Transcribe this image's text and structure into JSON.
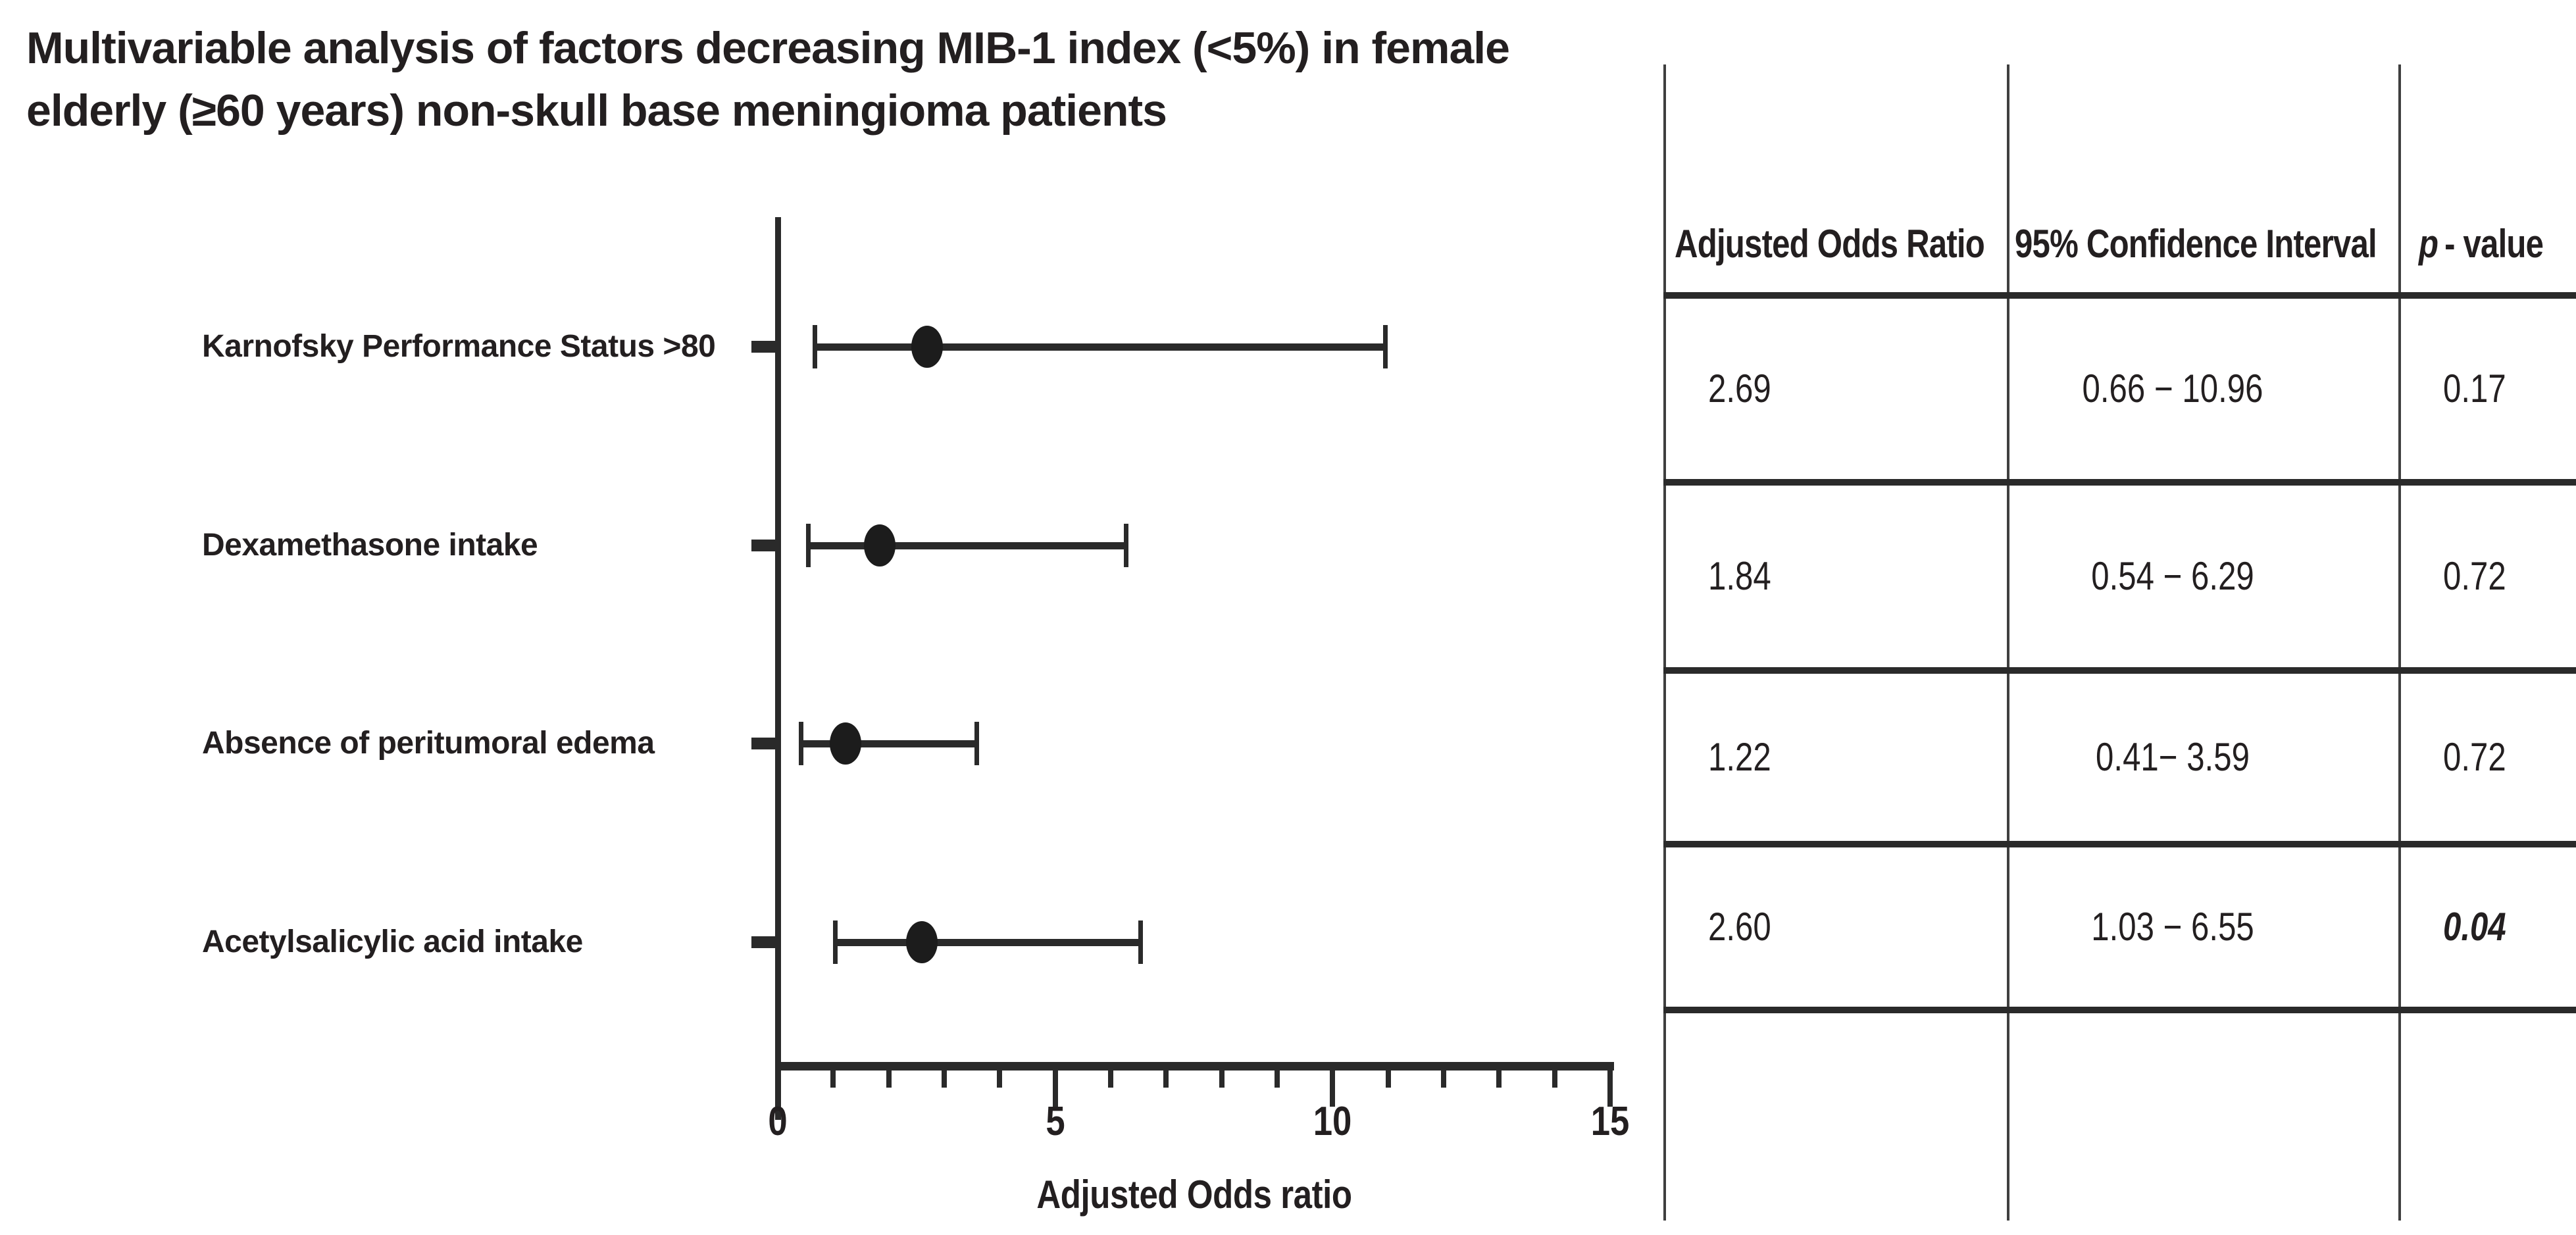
{
  "title_lines": {
    "line1": "Multivariable analysis of factors decreasing MIB-1 index (<5%) in female",
    "line2": "elderly (≥60 years) non-skull base meningioma patients"
  },
  "chart_data": {
    "type": "scatter",
    "subtype": "forest-plot-with-error-bars",
    "title": "Multivariable analysis of factors decreasing MIB-1 index (<5%) in female elderly (≥60 years) non-skull base meningioma patients",
    "categories": [
      "Karnofsky Performance Status >80",
      "Dexamethasone intake",
      "Absence of peritumoral edema",
      "Acetylsalicylic acid intake"
    ],
    "rows": [
      {
        "label": "Karnofsky Performance Status >80",
        "odds_ratio": 2.69,
        "ci_low": 0.66,
        "ci_high": 10.96,
        "p_value": 0.17
      },
      {
        "label": "Dexamethasone intake",
        "odds_ratio": 1.84,
        "ci_low": 0.54,
        "ci_high": 6.29,
        "p_value": 0.72
      },
      {
        "label": "Absence of peritumoral edema",
        "odds_ratio": 1.22,
        "ci_low": 0.41,
        "ci_high": 3.59,
        "p_value": 0.72
      },
      {
        "label": "Acetylsalicylic acid intake",
        "odds_ratio": 2.6,
        "ci_low": 1.03,
        "ci_high": 6.55,
        "p_value": 0.04
      }
    ],
    "xlabel": "Adjusted Odds ratio",
    "ylabel": "",
    "xlim": [
      0,
      15
    ],
    "xticks": [
      0,
      5,
      10,
      15
    ],
    "minor_tick_step": 1,
    "grid": false,
    "legend": false,
    "marker": "filled-ellipse"
  },
  "table": {
    "headers": {
      "odds_ratio": "Adjusted Odds Ratio",
      "confidence_interval": "95% Confidence Interval",
      "p_italic": "p",
      "p_suffix": "- value"
    },
    "rows": [
      {
        "adjusted_odds_ratio": "2.69",
        "confidence_interval": "0.66 − 10.96",
        "p_value": "0.17",
        "p_emphasis": false
      },
      {
        "adjusted_odds_ratio": "1.84",
        "confidence_interval": "0.54 − 6.29",
        "p_value": "0.72",
        "p_emphasis": false
      },
      {
        "adjusted_odds_ratio": "1.22",
        "confidence_interval": "0.41− 3.59",
        "p_value": "0.72",
        "p_emphasis": false
      },
      {
        "adjusted_odds_ratio": "2.60",
        "confidence_interval": "1.03 − 6.55",
        "p_value": "0.04",
        "p_emphasis": true
      }
    ]
  },
  "colors": {
    "background": "#ffffff",
    "text": "#231f20",
    "axis_line": "#2a2a2a",
    "table_line": "#3f3f3f",
    "marker": "#1c1c1c"
  }
}
